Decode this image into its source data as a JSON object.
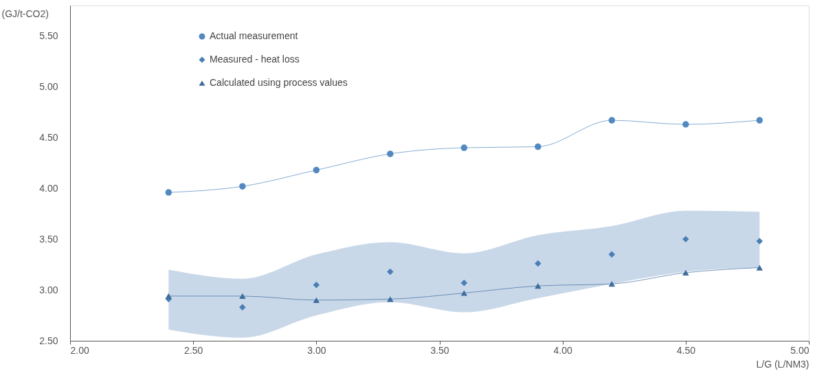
{
  "chart_data": {
    "type": "line",
    "xlabel": "L/G (L/NM3)",
    "ylabel": "(GJ/t-CO2)",
    "x": [
      2.4,
      2.7,
      3.0,
      3.3,
      3.6,
      3.9,
      4.2,
      4.5,
      4.8
    ],
    "series": [
      {
        "name": "Actual measurement",
        "type": "line",
        "marker": "circle",
        "color": "#5289c0",
        "values": [
          3.96,
          4.02,
          4.18,
          4.34,
          4.4,
          4.41,
          4.67,
          4.63,
          4.67
        ]
      },
      {
        "name": "Measured - heat loss",
        "type": "scatter",
        "marker": "diamond",
        "color": "#4a7eb5",
        "values": [
          2.91,
          2.83,
          3.05,
          3.18,
          3.07,
          3.26,
          3.35,
          3.5,
          3.48
        ],
        "lower": [
          2.61,
          2.53,
          2.75,
          2.88,
          2.78,
          2.92,
          3.06,
          3.18,
          3.22
        ],
        "upper": [
          3.2,
          3.11,
          3.35,
          3.47,
          3.36,
          3.54,
          3.63,
          3.78,
          3.77
        ]
      },
      {
        "name": "Calculated using process values",
        "type": "line",
        "marker": "triangle",
        "color": "#3e6d9e",
        "values": [
          2.94,
          2.94,
          2.9,
          2.91,
          2.97,
          3.04,
          3.06,
          3.17,
          3.22
        ]
      }
    ],
    "xlim": [
      2.0,
      5.0
    ],
    "xticks": [
      {
        "value": 2.0,
        "label": "2.00"
      },
      {
        "value": 2.5,
        "label": "2.50"
      },
      {
        "value": 3.0,
        "label": "3.00"
      },
      {
        "value": 3.5,
        "label": "3.50"
      },
      {
        "value": 4.0,
        "label": "4.00"
      },
      {
        "value": 4.5,
        "label": "4.50"
      },
      {
        "value": 5.0,
        "label": "5.00"
      }
    ],
    "ylim": [
      2.5,
      5.8
    ],
    "yticks": [
      {
        "value": 2.5,
        "label": "2.50"
      },
      {
        "value": 3.0,
        "label": "3.00"
      },
      {
        "value": 3.5,
        "label": "3.50"
      },
      {
        "value": 4.0,
        "label": "4.00"
      },
      {
        "value": 4.5,
        "label": "4.50"
      },
      {
        "value": 5.0,
        "label": "5.00"
      },
      {
        "value": 5.5,
        "label": "5.50"
      }
    ],
    "grid": false,
    "legend": "top left"
  }
}
